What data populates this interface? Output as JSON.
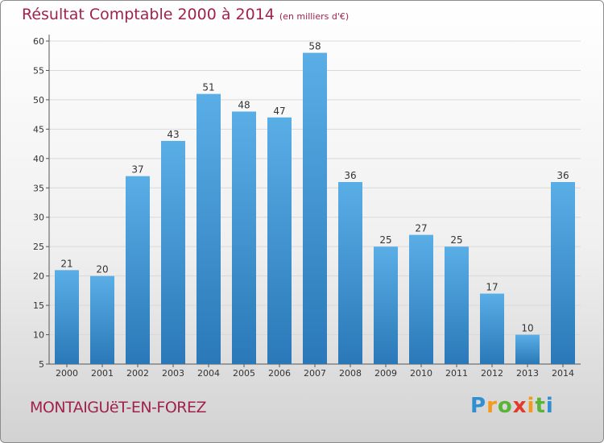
{
  "header": {
    "title": "Résultat Comptable 2000 à 2014",
    "unit": "(en milliers d'€)"
  },
  "footer": {
    "place": "MONTAIGUëT-EN-FOREZ",
    "brand": "Proxiti"
  },
  "colors": {
    "title": "#a0224e",
    "bar_light": "#5aaee6",
    "bar_dark": "#2a78b8",
    "grid": "#d9d9d9"
  },
  "chart_data": {
    "type": "bar",
    "categories": [
      "2000",
      "2001",
      "2002",
      "2003",
      "2004",
      "2005",
      "2006",
      "2007",
      "2008",
      "2009",
      "2010",
      "2011",
      "2012",
      "2013",
      "2014"
    ],
    "values": [
      21,
      20,
      37,
      43,
      51,
      48,
      47,
      58,
      36,
      25,
      27,
      25,
      17,
      10,
      36
    ],
    "ylim": [
      5,
      60
    ],
    "yticks": [
      5,
      10,
      15,
      20,
      25,
      30,
      35,
      40,
      45,
      50,
      55,
      60
    ],
    "grid": true,
    "data_labels": true
  }
}
